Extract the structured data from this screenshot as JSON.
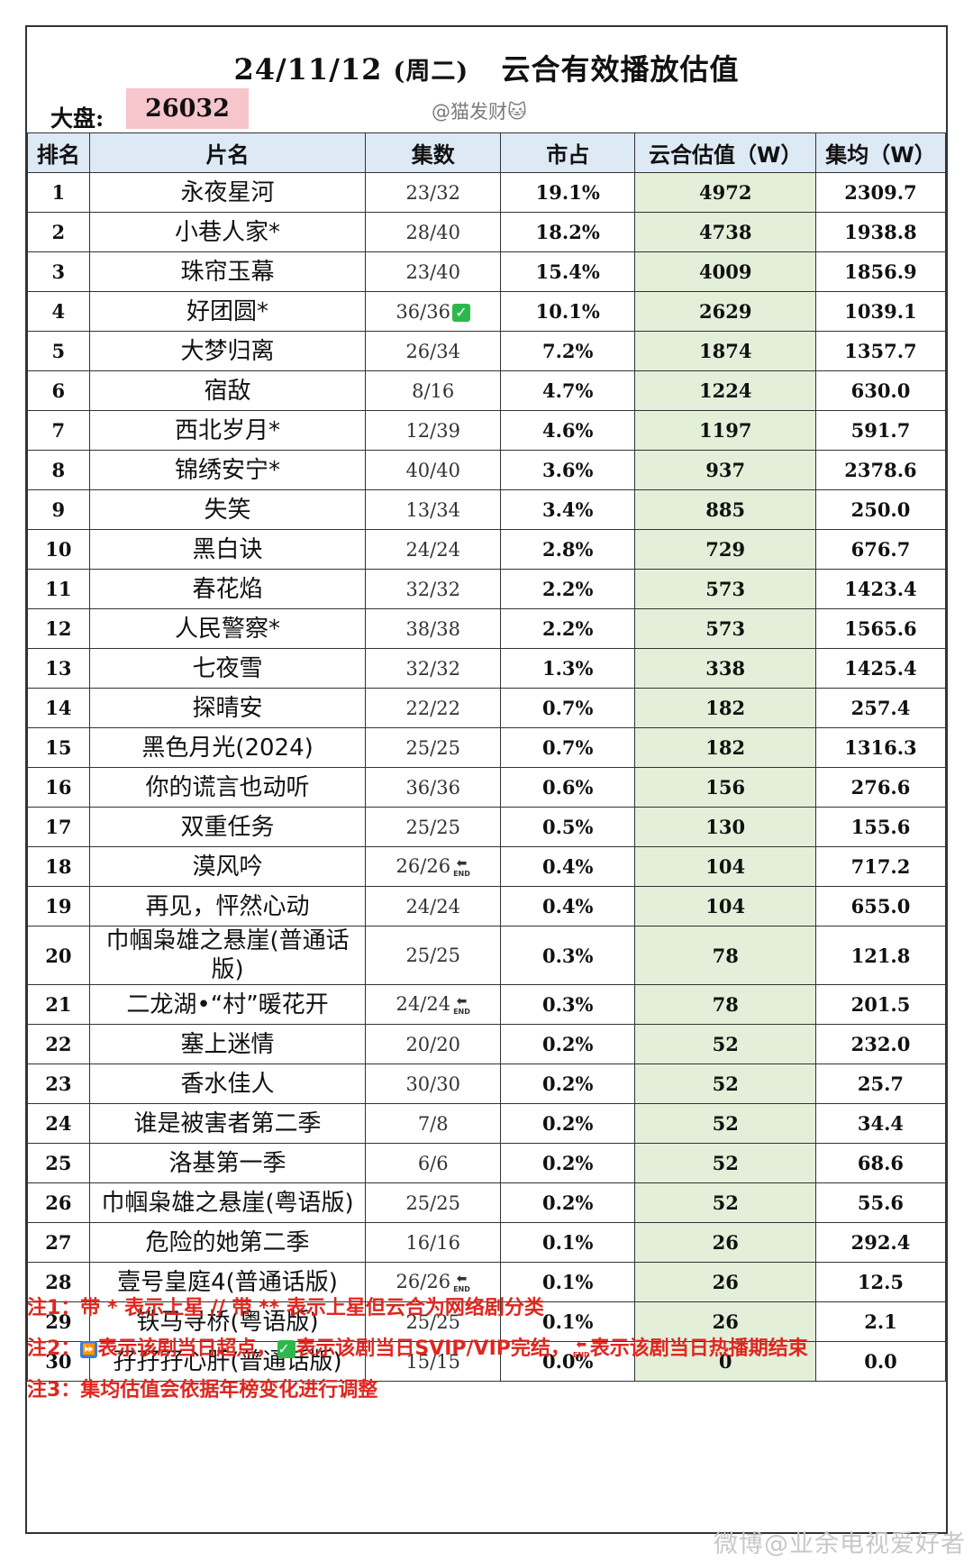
{
  "header": {
    "date": "24/11/12",
    "weekday": "(周二)",
    "title": "云合有效播放估值",
    "dapan_label": "大盘:",
    "dapan_value": "26032",
    "watermark": "@猫发财🐱"
  },
  "columns": [
    "排名",
    "片名",
    "集数",
    "市占",
    "云合估值（W）",
    "集均（W）"
  ],
  "rows": [
    {
      "rank": "1",
      "name": "永夜星河",
      "ep": "23/32",
      "share": "19.1%",
      "est": "4972",
      "avg": "2309.7"
    },
    {
      "rank": "2",
      "name": "小巷人家*",
      "ep": "28/40",
      "share": "18.2%",
      "est": "4738",
      "avg": "1938.8"
    },
    {
      "rank": "3",
      "name": "珠帘玉幕",
      "ep": "23/40",
      "share": "15.4%",
      "est": "4009",
      "avg": "1856.9"
    },
    {
      "rank": "4",
      "name": "好团圆*",
      "ep": "36/36",
      "share": "10.1%",
      "est": "2629",
      "avg": "1039.1",
      "icon": "check"
    },
    {
      "rank": "5",
      "name": "大梦归离",
      "ep": "26/34",
      "share": "7.2%",
      "est": "1874",
      "avg": "1357.7"
    },
    {
      "rank": "6",
      "name": "宿敌",
      "ep": "8/16",
      "share": "4.7%",
      "est": "1224",
      "avg": "630.0"
    },
    {
      "rank": "7",
      "name": "西北岁月*",
      "ep": "12/39",
      "share": "4.6%",
      "est": "1197",
      "avg": "591.7"
    },
    {
      "rank": "8",
      "name": "锦绣安宁*",
      "ep": "40/40",
      "share": "3.6%",
      "est": "937",
      "avg": "2378.6"
    },
    {
      "rank": "9",
      "name": "失笑",
      "ep": "13/34",
      "share": "3.4%",
      "est": "885",
      "avg": "250.0"
    },
    {
      "rank": "10",
      "name": "黑白诀",
      "ep": "24/24",
      "share": "2.8%",
      "est": "729",
      "avg": "676.7"
    },
    {
      "rank": "11",
      "name": "春花焰",
      "ep": "32/32",
      "share": "2.2%",
      "est": "573",
      "avg": "1423.4"
    },
    {
      "rank": "12",
      "name": "人民警察*",
      "ep": "38/38",
      "share": "2.2%",
      "est": "573",
      "avg": "1565.6"
    },
    {
      "rank": "13",
      "name": "七夜雪",
      "ep": "32/32",
      "share": "1.3%",
      "est": "338",
      "avg": "1425.4"
    },
    {
      "rank": "14",
      "name": "探晴安",
      "ep": "22/22",
      "share": "0.7%",
      "est": "182",
      "avg": "257.4"
    },
    {
      "rank": "15",
      "name": "黑色月光(2024)",
      "ep": "25/25",
      "share": "0.7%",
      "est": "182",
      "avg": "1316.3"
    },
    {
      "rank": "16",
      "name": "你的谎言也动听",
      "ep": "36/36",
      "share": "0.6%",
      "est": "156",
      "avg": "276.6"
    },
    {
      "rank": "17",
      "name": "双重任务",
      "ep": "25/25",
      "share": "0.5%",
      "est": "130",
      "avg": "155.6"
    },
    {
      "rank": "18",
      "name": "漠风吟",
      "ep": "26/26",
      "share": "0.4%",
      "est": "104",
      "avg": "717.2",
      "icon": "end"
    },
    {
      "rank": "19",
      "name": "再见，怦然心动",
      "ep": "24/24",
      "share": "0.4%",
      "est": "104",
      "avg": "655.0"
    },
    {
      "rank": "20",
      "name": "巾帼枭雄之悬崖(普通话版)",
      "ep": "25/25",
      "share": "0.3%",
      "est": "78",
      "avg": "121.8",
      "tall": true
    },
    {
      "rank": "21",
      "name": "二龙湖•“村”暖花开",
      "ep": "24/24",
      "share": "0.3%",
      "est": "78",
      "avg": "201.5",
      "icon": "end"
    },
    {
      "rank": "22",
      "name": "塞上迷情",
      "ep": "20/20",
      "share": "0.2%",
      "est": "52",
      "avg": "232.0"
    },
    {
      "rank": "23",
      "name": "香水佳人",
      "ep": "30/30",
      "share": "0.2%",
      "est": "52",
      "avg": "25.7"
    },
    {
      "rank": "24",
      "name": "谁是被害者第二季",
      "ep": "7/8",
      "share": "0.2%",
      "est": "52",
      "avg": "34.4"
    },
    {
      "rank": "25",
      "name": "洛基第一季",
      "ep": "6/6",
      "share": "0.2%",
      "est": "52",
      "avg": "68.6"
    },
    {
      "rank": "26",
      "name": "巾帼枭雄之悬崖(粤语版)",
      "ep": "25/25",
      "share": "0.2%",
      "est": "52",
      "avg": "55.6"
    },
    {
      "rank": "27",
      "name": "危险的她第二季",
      "ep": "16/16",
      "share": "0.1%",
      "est": "26",
      "avg": "292.4"
    },
    {
      "rank": "28",
      "name": "壹号皇庭4(普通话版)",
      "ep": "26/26",
      "share": "0.1%",
      "est": "26",
      "avg": "12.5",
      "icon": "end"
    },
    {
      "rank": "29",
      "name": "铁马寻桥(粤语版)",
      "ep": "25/25",
      "share": "0.1%",
      "est": "26",
      "avg": "2.1"
    },
    {
      "rank": "30",
      "name": "孖孖孖心肝(普通话版)",
      "ep": "15/15",
      "share": "0.0%",
      "est": "0",
      "avg": "0.0"
    }
  ],
  "icons": {
    "check": "check-complete-icon",
    "end": "end-return-icon",
    "fast_forward": "fast-forward-icon"
  },
  "end_text": "END",
  "notes": {
    "n1": "注1：带 * 表示上星 // 带 ** 表示上星但云合为网络剧分类",
    "n2_prefix": "注2：",
    "n2_a": "表示该剧当日超点，",
    "n2_b": "表示该剧当日SVIP/VIP完结，",
    "n2_c": "表示该剧当日热播期结束",
    "n3": "注3：集均估值会依据年榜变化进行调整"
  },
  "footer_watermark": "微博@业余电视爱好者",
  "colors": {
    "header_bg": "#dde9f5",
    "estimate_bg": "#e3efd8",
    "dapan_bg": "#f7c5cc",
    "note_red": "#e0261f"
  }
}
